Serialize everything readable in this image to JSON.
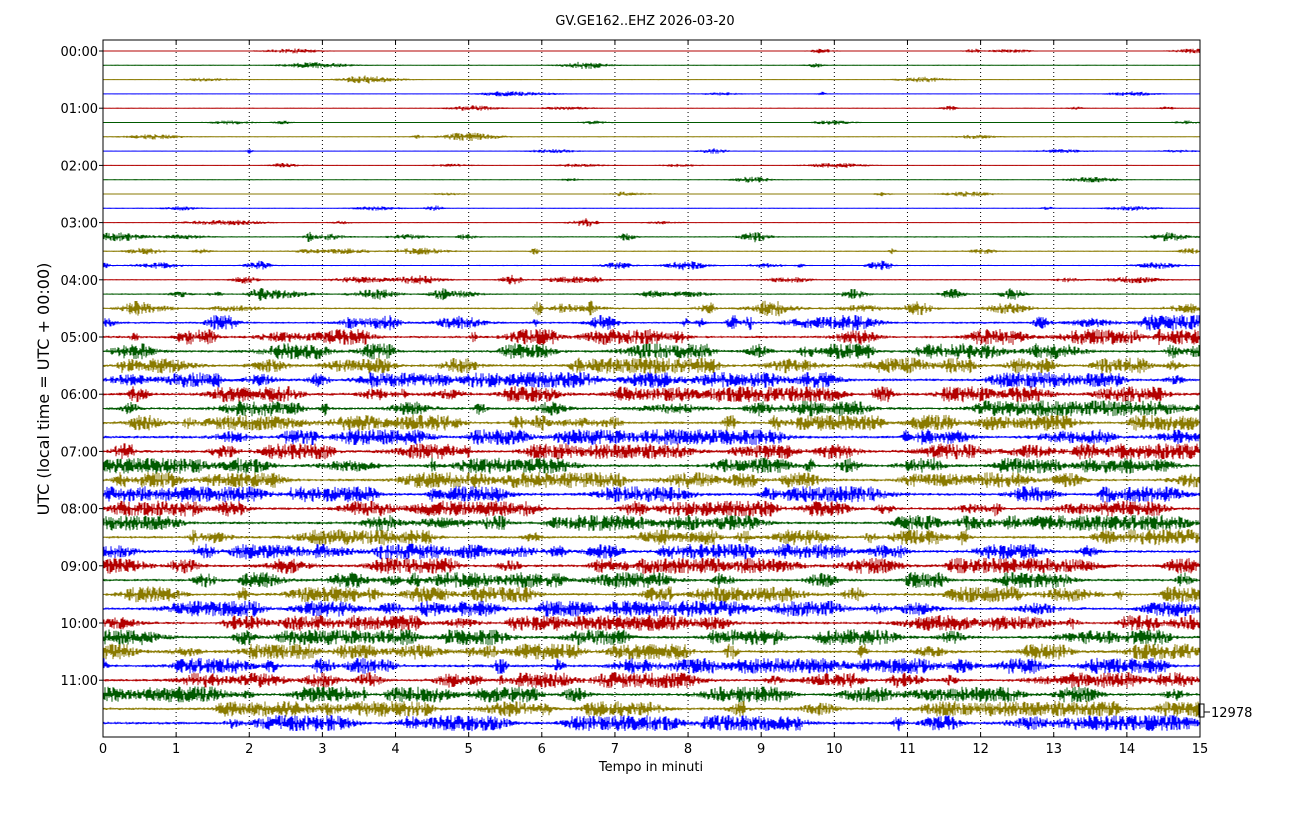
{
  "chart_data": {
    "type": "line",
    "title": "GV.GE162..EHZ 2026-03-20",
    "xlabel": "Tempo in minuti",
    "ylabel": "UTC (local time = UTC + 00:00)",
    "xlim": [
      0,
      15
    ],
    "x_ticks": [
      "0",
      "1",
      "2",
      "3",
      "4",
      "5",
      "6",
      "7",
      "8",
      "9",
      "10",
      "11",
      "12",
      "13",
      "14",
      "15"
    ],
    "y_tick_labels": [
      "00:00",
      "01:00",
      "02:00",
      "03:00",
      "04:00",
      "05:00",
      "06:00",
      "07:00",
      "08:00",
      "09:00",
      "10:00",
      "11:00"
    ],
    "trace_interval_minutes": 15,
    "trace_count": 48,
    "trace_colors": [
      "#b30000",
      "#005a00",
      "#8a7a00",
      "#0000ff"
    ],
    "vertical_grid": "dotted",
    "scale_annotation": "12978",
    "activity_levels": [
      0.05,
      0.05,
      0.05,
      0.05,
      0.05,
      0.05,
      0.05,
      0.05,
      0.05,
      0.05,
      0.05,
      0.05,
      0.08,
      0.25,
      0.18,
      0.2,
      0.22,
      0.3,
      0.45,
      0.55,
      0.7,
      0.75,
      0.8,
      0.85,
      0.85,
      0.85,
      0.8,
      0.85,
      0.85,
      0.85,
      0.8,
      0.85,
      0.8,
      0.8,
      0.75,
      0.8,
      0.8,
      0.8,
      0.8,
      0.8,
      0.8,
      0.85,
      0.8,
      0.85,
      0.8,
      0.8,
      0.8,
      0.85
    ]
  }
}
